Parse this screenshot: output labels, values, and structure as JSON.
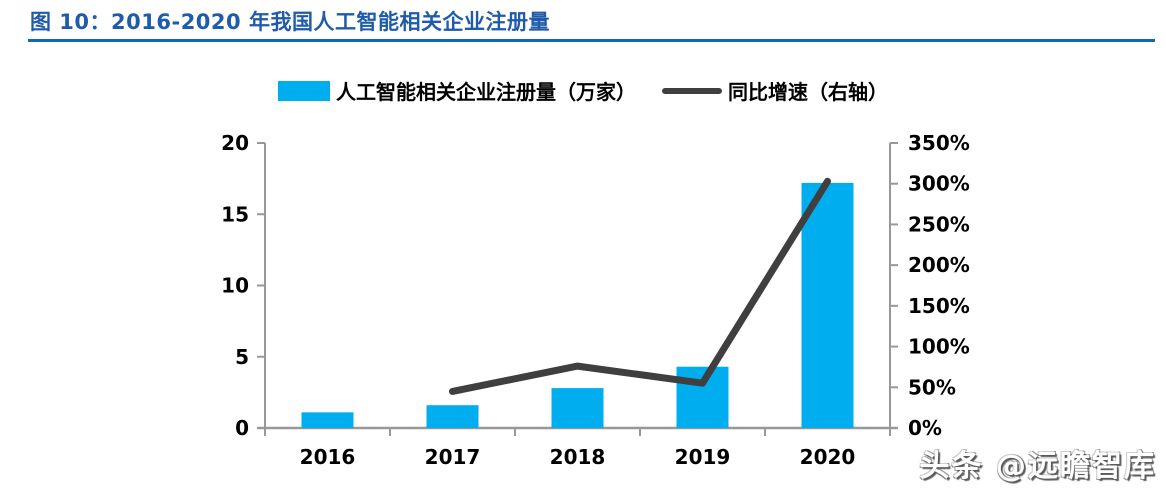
{
  "header": {
    "title": "图 10：2016-2020 年我国人工智能相关企业注册量"
  },
  "watermark": {
    "text": "头条 @远瞻智库"
  },
  "colors": {
    "title": "#1F5BA9",
    "rule": "#1069B4",
    "bar": "#00AEEF",
    "line": "#3F3F3F",
    "axis": "#989898",
    "label": "#000000"
  },
  "chart_data": {
    "type": "bar",
    "title": "2016-2020 年我国人工智能相关企业注册量",
    "categories": [
      "2016",
      "2017",
      "2018",
      "2019",
      "2020"
    ],
    "series": [
      {
        "name": "人工智能相关企业注册量（万家）",
        "type": "bar",
        "axis": "left",
        "values": [
          1.1,
          1.6,
          2.8,
          4.3,
          17.2
        ]
      },
      {
        "name": "同比增速（右轴）",
        "type": "line",
        "axis": "right",
        "unit": "%",
        "values": [
          null,
          45,
          76,
          55,
          303
        ]
      }
    ],
    "left_axis": {
      "min": 0,
      "max": 20,
      "step": 5,
      "ticks": [
        "0",
        "5",
        "10",
        "15",
        "20"
      ]
    },
    "right_axis": {
      "min": 0,
      "max": 350,
      "step": 50,
      "ticks": [
        "0%",
        "50%",
        "100%",
        "150%",
        "200%",
        "250%",
        "300%",
        "350%"
      ]
    },
    "legend_position": "top",
    "grid": false
  }
}
